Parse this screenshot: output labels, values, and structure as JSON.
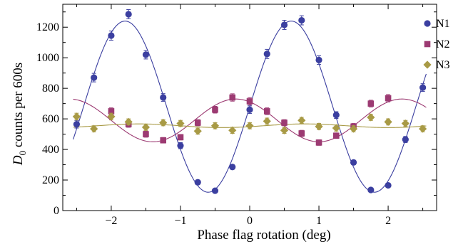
{
  "chart_data": {
    "type": "scatter",
    "title": "",
    "xlabel": "Phase flag rotation (deg)",
    "ylabel_main": "D",
    "ylabel_sub": "0",
    "ylabel_rest": " counts per 600s",
    "xlim": [
      -2.7,
      2.7
    ],
    "ylim": [
      0,
      1350
    ],
    "xticks": [
      {
        "value": -2,
        "label": "−2"
      },
      {
        "value": -1,
        "label": "−1"
      },
      {
        "value": 0,
        "label": "0"
      },
      {
        "value": 1,
        "label": "1"
      },
      {
        "value": 2,
        "label": "2"
      }
    ],
    "yticks": [
      0,
      200,
      400,
      600,
      800,
      1000,
      1200
    ],
    "legend_position": "top-right",
    "series": [
      {
        "name": "N1",
        "color": "#3b3fa0",
        "marker": "circle",
        "fit": {
          "offset": 680,
          "amplitude": 560,
          "period": 2.4,
          "phase_deg": -1.8
        },
        "points": [
          {
            "x": -2.5,
            "y": 565,
            "err": 25
          },
          {
            "x": -2.25,
            "y": 870,
            "err": 28
          },
          {
            "x": -2.0,
            "y": 1145,
            "err": 30
          },
          {
            "x": -1.75,
            "y": 1285,
            "err": 30
          },
          {
            "x": -1.5,
            "y": 1020,
            "err": 28
          },
          {
            "x": -1.25,
            "y": 740,
            "err": 25
          },
          {
            "x": -1.0,
            "y": 425,
            "err": 20
          },
          {
            "x": -0.75,
            "y": 185,
            "err": 15
          },
          {
            "x": -0.5,
            "y": 130,
            "err": 12
          },
          {
            "x": -0.25,
            "y": 285,
            "err": 15
          },
          {
            "x": 0.0,
            "y": 660,
            "err": 25
          },
          {
            "x": 0.25,
            "y": 1025,
            "err": 30
          },
          {
            "x": 0.5,
            "y": 1215,
            "err": 30
          },
          {
            "x": 0.75,
            "y": 1245,
            "err": 30
          },
          {
            "x": 1.0,
            "y": 985,
            "err": 28
          },
          {
            "x": 1.25,
            "y": 625,
            "err": 22
          },
          {
            "x": 1.5,
            "y": 315,
            "err": 15
          },
          {
            "x": 1.75,
            "y": 135,
            "err": 12
          },
          {
            "x": 2.0,
            "y": 165,
            "err": 12
          },
          {
            "x": 2.25,
            "y": 465,
            "err": 20
          },
          {
            "x": 2.5,
            "y": 805,
            "err": 25
          }
        ]
      },
      {
        "name": "N2",
        "color": "#9c3a72",
        "marker": "square",
        "fit": {
          "offset": 590,
          "amplitude": 140,
          "period": 2.4,
          "phase_deg": -0.2
        },
        "points": [
          {
            "x": -2.0,
            "y": 650,
            "err": 22
          },
          {
            "x": -1.75,
            "y": 565,
            "err": 20
          },
          {
            "x": -1.5,
            "y": 500,
            "err": 20
          },
          {
            "x": -1.25,
            "y": 460,
            "err": 18
          },
          {
            "x": -1.0,
            "y": 480,
            "err": 18
          },
          {
            "x": -0.75,
            "y": 575,
            "err": 20
          },
          {
            "x": -0.5,
            "y": 660,
            "err": 22
          },
          {
            "x": -0.25,
            "y": 740,
            "err": 24
          },
          {
            "x": 0.0,
            "y": 715,
            "err": 24
          },
          {
            "x": 0.25,
            "y": 650,
            "err": 22
          },
          {
            "x": 0.5,
            "y": 575,
            "err": 20
          },
          {
            "x": 0.75,
            "y": 505,
            "err": 20
          },
          {
            "x": 1.0,
            "y": 445,
            "err": 18
          },
          {
            "x": 1.25,
            "y": 490,
            "err": 18
          },
          {
            "x": 1.5,
            "y": 550,
            "err": 20
          },
          {
            "x": 1.75,
            "y": 700,
            "err": 22
          },
          {
            "x": 2.0,
            "y": 735,
            "err": 24
          }
        ]
      },
      {
        "name": "N3",
        "color": "#a89a45",
        "marker": "diamond",
        "fit": {
          "offset": 555,
          "amplitude": 12,
          "period": 2.4,
          "phase_deg": -1.6
        },
        "points": [
          {
            "x": -2.5,
            "y": 615,
            "err": 22
          },
          {
            "x": -2.25,
            "y": 535,
            "err": 20
          },
          {
            "x": -2.0,
            "y": 615,
            "err": 22
          },
          {
            "x": -1.75,
            "y": 580,
            "err": 20
          },
          {
            "x": -1.5,
            "y": 545,
            "err": 20
          },
          {
            "x": -1.25,
            "y": 575,
            "err": 20
          },
          {
            "x": -1.0,
            "y": 570,
            "err": 20
          },
          {
            "x": -0.75,
            "y": 520,
            "err": 20
          },
          {
            "x": -0.5,
            "y": 555,
            "err": 20
          },
          {
            "x": -0.25,
            "y": 525,
            "err": 20
          },
          {
            "x": 0.0,
            "y": 555,
            "err": 20
          },
          {
            "x": 0.25,
            "y": 585,
            "err": 20
          },
          {
            "x": 0.5,
            "y": 525,
            "err": 20
          },
          {
            "x": 0.75,
            "y": 590,
            "err": 20
          },
          {
            "x": 1.0,
            "y": 550,
            "err": 20
          },
          {
            "x": 1.25,
            "y": 540,
            "err": 20
          },
          {
            "x": 1.5,
            "y": 535,
            "err": 20
          },
          {
            "x": 1.75,
            "y": 610,
            "err": 20
          },
          {
            "x": 2.0,
            "y": 580,
            "err": 20
          },
          {
            "x": 2.25,
            "y": 570,
            "err": 20
          },
          {
            "x": 2.5,
            "y": 535,
            "err": 20
          }
        ]
      }
    ]
  }
}
